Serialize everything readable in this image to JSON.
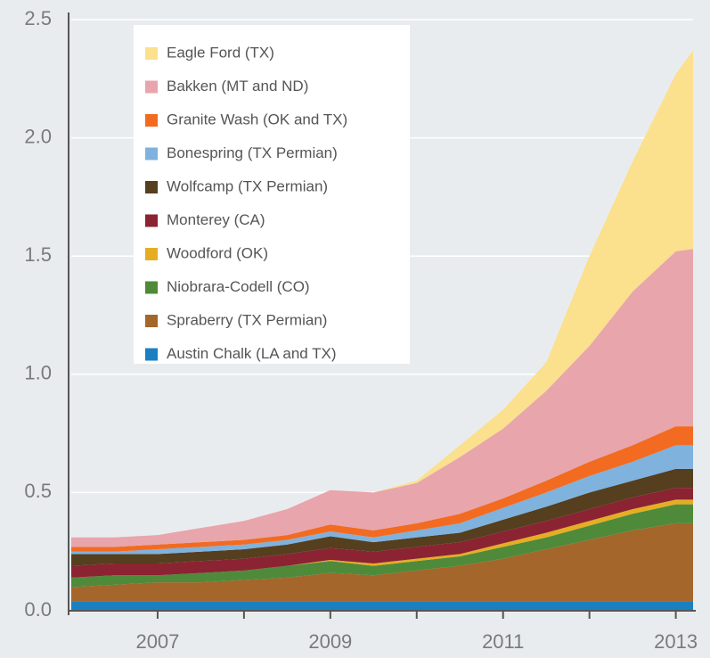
{
  "chart_data": {
    "type": "stacked_area",
    "x": [
      2006,
      2006.5,
      2007,
      2007.5,
      2008,
      2008.5,
      2009,
      2009.5,
      2010,
      2010.5,
      2011,
      2011.5,
      2012,
      2012.5,
      2013,
      2013.2
    ],
    "series": [
      {
        "name": "Eagle Ford (TX)",
        "color": "#fbe08e",
        "values": [
          0,
          0,
          0,
          0,
          0,
          0,
          0,
          0,
          0.01,
          0.05,
          0.08,
          0.12,
          0.38,
          0.55,
          0.75,
          0.84
        ]
      },
      {
        "name": "Bakken (MT and ND)",
        "color": "#e8a5ab",
        "values": [
          0.04,
          0.04,
          0.04,
          0.06,
          0.08,
          0.11,
          0.145,
          0.16,
          0.17,
          0.24,
          0.295,
          0.38,
          0.49,
          0.65,
          0.74,
          0.75
        ]
      },
      {
        "name": "Granite Wash (OK and TX)",
        "color": "#f26b21",
        "values": [
          0.02,
          0.02,
          0.02,
          0.02,
          0.02,
          0.02,
          0.03,
          0.03,
          0.03,
          0.04,
          0.04,
          0.05,
          0.06,
          0.07,
          0.08,
          0.08
        ]
      },
      {
        "name": "Bonespring (TX Permian)",
        "color": "#7fb2dd",
        "values": [
          0.01,
          0.01,
          0.02,
          0.02,
          0.02,
          0.02,
          0.02,
          0.02,
          0.03,
          0.04,
          0.05,
          0.06,
          0.07,
          0.08,
          0.1,
          0.1
        ]
      },
      {
        "name": "Wolfcamp (TX Permian)",
        "color": "#553f1e",
        "values": [
          0.05,
          0.04,
          0.04,
          0.04,
          0.04,
          0.04,
          0.05,
          0.04,
          0.04,
          0.04,
          0.05,
          0.06,
          0.07,
          0.07,
          0.08,
          0.08
        ]
      },
      {
        "name": "Monterey (CA)",
        "color": "#8b2332",
        "values": [
          0.05,
          0.05,
          0.05,
          0.05,
          0.05,
          0.05,
          0.05,
          0.05,
          0.05,
          0.05,
          0.05,
          0.05,
          0.05,
          0.05,
          0.05,
          0.05
        ]
      },
      {
        "name": "Woodford (OK)",
        "color": "#e5ae22",
        "values": [
          0,
          0,
          0,
          0,
          0,
          0,
          0.005,
          0.01,
          0.01,
          0.01,
          0.015,
          0.02,
          0.02,
          0.02,
          0.02,
          0.02
        ]
      },
      {
        "name": "Niobrara-Codell (CO)",
        "color": "#4f8a3a",
        "values": [
          0.04,
          0.04,
          0.03,
          0.04,
          0.04,
          0.05,
          0.05,
          0.04,
          0.04,
          0.04,
          0.05,
          0.05,
          0.06,
          0.07,
          0.08,
          0.08
        ]
      },
      {
        "name": "Spraberry (TX Permian)",
        "color": "#a4662a",
        "values": [
          0.06,
          0.07,
          0.08,
          0.08,
          0.09,
          0.1,
          0.12,
          0.11,
          0.13,
          0.15,
          0.18,
          0.22,
          0.26,
          0.3,
          0.33,
          0.33
        ]
      },
      {
        "name": "Austin Chalk (LA and TX)",
        "color": "#1b80c0",
        "values": [
          0.04,
          0.04,
          0.04,
          0.04,
          0.04,
          0.04,
          0.04,
          0.04,
          0.04,
          0.04,
          0.04,
          0.04,
          0.04,
          0.04,
          0.04,
          0.04
        ]
      }
    ],
    "xlim": [
      2006,
      2013.2
    ],
    "xticks": [
      2007,
      2009,
      2011,
      2013
    ],
    "xminorticks": [
      2008,
      2010,
      2012
    ],
    "ylim": [
      0,
      2.5
    ],
    "yticks": [
      {
        "value": 0,
        "label": "0.0"
      },
      0.5,
      {
        "value": 1,
        "label": "1.0"
      },
      1.5,
      {
        "value": 2,
        "label": "2.0"
      },
      2.5
    ],
    "grid": true,
    "legend": "upper left"
  }
}
